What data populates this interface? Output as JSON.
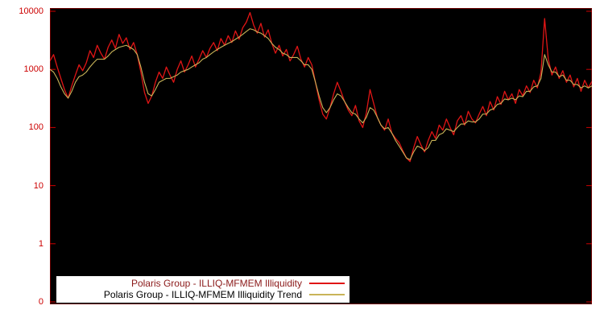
{
  "figure": {
    "background": "#ffffff",
    "plot_background": "#000000",
    "frame_color": "#6b0000"
  },
  "chart_data": {
    "type": "line",
    "title": "",
    "xlabel": "",
    "ylabel": "",
    "y_scale": "log",
    "ylim": [
      0.1,
      10000
    ],
    "grid": false,
    "legend_position": "bottom-left-inside",
    "axis_label_color": "#cc0000",
    "yticks": [
      {
        "label": "10000",
        "value": 10000
      },
      {
        "label": "1000",
        "value": 1000
      },
      {
        "label": "100",
        "value": 100
      },
      {
        "label": "10",
        "value": 10
      },
      {
        "label": "1",
        "value": 1
      },
      {
        "label": "0",
        "value": 0.1
      }
    ],
    "series": [
      {
        "name": "Polaris Group - ILLIQ-MFMEM Illiquidity",
        "color": "#e01515",
        "label_color": "#8b1a1a",
        "stroke_width": 1.3,
        "values": [
          1400,
          1800,
          1100,
          700,
          450,
          320,
          520,
          800,
          1200,
          950,
          1300,
          2100,
          1600,
          2600,
          1900,
          1500,
          2400,
          3200,
          2300,
          4000,
          2800,
          3500,
          2200,
          2900,
          1800,
          900,
          400,
          260,
          350,
          600,
          900,
          700,
          1100,
          800,
          600,
          1000,
          1400,
          900,
          1200,
          1700,
          1100,
          1500,
          2100,
          1600,
          2300,
          2900,
          2100,
          3400,
          2600,
          3800,
          2900,
          4600,
          3300,
          5200,
          6500,
          9500,
          5800,
          4200,
          6200,
          3600,
          4800,
          2800,
          1900,
          2600,
          1700,
          2200,
          1400,
          1800,
          2500,
          1500,
          1100,
          1600,
          1200,
          600,
          300,
          170,
          140,
          220,
          380,
          600,
          420,
          280,
          200,
          160,
          240,
          130,
          100,
          180,
          450,
          260,
          150,
          110,
          90,
          140,
          80,
          65,
          55,
          40,
          30,
          26,
          45,
          70,
          50,
          38,
          60,
          85,
          65,
          110,
          90,
          140,
          100,
          75,
          130,
          160,
          110,
          190,
          140,
          120,
          170,
          230,
          160,
          280,
          200,
          340,
          250,
          420,
          300,
          380,
          260,
          450,
          350,
          520,
          400,
          650,
          480,
          900,
          7500,
          1500,
          800,
          1100,
          700,
          950,
          600,
          800,
          500,
          700,
          420,
          650,
          480,
          620
        ]
      },
      {
        "name": "Polaris Group - ILLIQ-MFMEM Illiquidity Trend",
        "color": "#c9b458",
        "label_color": "#000000",
        "stroke_width": 1.1,
        "values": [
          1000,
          900,
          700,
          500,
          380,
          320,
          420,
          600,
          750,
          800,
          900,
          1100,
          1300,
          1500,
          1500,
          1500,
          1700,
          2000,
          2200,
          2400,
          2500,
          2600,
          2400,
          2200,
          1800,
          1100,
          600,
          380,
          350,
          450,
          600,
          650,
          700,
          700,
          750,
          800,
          900,
          950,
          1000,
          1100,
          1200,
          1300,
          1500,
          1600,
          1800,
          2000,
          2200,
          2400,
          2600,
          2800,
          3000,
          3300,
          3600,
          4000,
          4500,
          5000,
          4800,
          4400,
          4200,
          3800,
          3400,
          2800,
          2400,
          2200,
          1900,
          1800,
          1600,
          1600,
          1600,
          1400,
          1200,
          1200,
          1000,
          600,
          350,
          220,
          180,
          220,
          300,
          380,
          350,
          280,
          220,
          180,
          170,
          140,
          120,
          150,
          220,
          200,
          150,
          110,
          95,
          100,
          80,
          60,
          48,
          38,
          30,
          28,
          38,
          48,
          45,
          40,
          45,
          60,
          60,
          75,
          80,
          95,
          90,
          85,
          100,
          115,
          115,
          130,
          125,
          125,
          140,
          170,
          170,
          200,
          210,
          250,
          260,
          310,
          300,
          320,
          300,
          350,
          340,
          420,
          420,
          500,
          520,
          700,
          1800,
          1200,
          900,
          900,
          750,
          800,
          650,
          650,
          550,
          550,
          480,
          520,
          480,
          520
        ]
      }
    ]
  }
}
